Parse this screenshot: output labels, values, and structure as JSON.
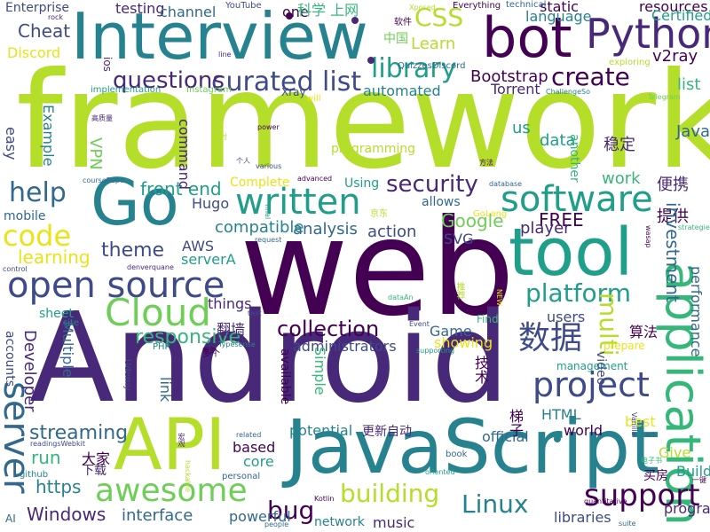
{
  "palette": {
    "dark_purple": "#440154",
    "purple": "#482878",
    "indigo": "#3e4a89",
    "blue": "#31688e",
    "teal_blue": "#26828e",
    "teal": "#1f9e89",
    "green": "#35b779",
    "light_green": "#6ece58",
    "lime": "#b5de2b",
    "yellow": "#e8e419"
  },
  "words": [
    {
      "text": "framework",
      "color": "#b5de2b"
    },
    {
      "text": "web",
      "color": "#440154"
    },
    {
      "text": "Android",
      "color": "#482878"
    },
    {
      "text": "JavaScript",
      "color": "#26828e"
    },
    {
      "text": "Interview",
      "color": "#26828e"
    },
    {
      "text": "bot",
      "color": "#440154"
    },
    {
      "text": "Go",
      "color": "#26828e"
    },
    {
      "text": "tool",
      "color": "#1f9e89"
    },
    {
      "text": "API",
      "color": "#b5de2b"
    },
    {
      "text": "application",
      "color": "#35b779"
    },
    {
      "text": "Python",
      "color": "#482878"
    },
    {
      "text": "open source",
      "color": "#3e4a89"
    },
    {
      "text": "Cloud",
      "color": "#6ece58"
    },
    {
      "text": "software",
      "color": "#1f9e89"
    },
    {
      "text": "written",
      "color": "#1f9e89"
    },
    {
      "text": "project",
      "color": "#3e4a89"
    },
    {
      "text": "数据",
      "color": "#3e4a89"
    },
    {
      "text": "awesome",
      "color": "#6ece58"
    },
    {
      "text": "server",
      "color": "#31688e"
    },
    {
      "text": "support",
      "color": "#440154"
    },
    {
      "text": "code",
      "color": "#e8e419"
    },
    {
      "text": "curated list",
      "color": "#3e4a89"
    },
    {
      "text": "library",
      "color": "#1f9e89"
    },
    {
      "text": "questions",
      "color": "#482878"
    },
    {
      "text": "help",
      "color": "#31688e"
    },
    {
      "text": "security",
      "color": "#482878"
    },
    {
      "text": "platform",
      "color": "#1f9e89"
    },
    {
      "text": "building",
      "color": "#b5de2b"
    },
    {
      "text": "Linux",
      "color": "#26828e"
    },
    {
      "text": "CSS",
      "color": "#b5de2b"
    },
    {
      "text": "create",
      "color": "#440154"
    },
    {
      "text": "collection",
      "color": "#440154"
    },
    {
      "text": "theme",
      "color": "#3e4a89"
    },
    {
      "text": "responsive",
      "color": "#35b779"
    },
    {
      "text": "front end",
      "color": "#1f9e89"
    },
    {
      "text": "Google",
      "color": "#6ece58"
    },
    {
      "text": "FREE",
      "color": "#440154"
    },
    {
      "text": "bug",
      "color": "#440154"
    },
    {
      "text": "Windows",
      "color": "#482878"
    },
    {
      "text": "interface",
      "color": "#31688e"
    },
    {
      "text": "streaming",
      "color": "#31688e"
    },
    {
      "text": "run",
      "color": "#35b779"
    },
    {
      "text": "https",
      "color": "#26828e"
    },
    {
      "text": "Cheat",
      "color": "#3e4a89"
    },
    {
      "text": "Learn",
      "color": "#b5de2b"
    },
    {
      "text": "Bootstrap",
      "color": "#440154"
    },
    {
      "text": "Torrent",
      "color": "#482878"
    },
    {
      "text": "v2ray",
      "color": "#440154"
    },
    {
      "text": "list",
      "color": "#35b779"
    },
    {
      "text": "Java",
      "color": "#31688e"
    },
    {
      "text": "稳定",
      "color": "#482878"
    },
    {
      "text": "便携",
      "color": "#482878"
    },
    {
      "text": "提供",
      "color": "#440154"
    },
    {
      "text": "investment",
      "color": "#31688e"
    },
    {
      "text": "data",
      "color": "#1f9e89"
    },
    {
      "text": "us",
      "color": "#1f9e89"
    },
    {
      "text": "work",
      "color": "#35b779"
    },
    {
      "text": "analysis",
      "color": "#31688e"
    },
    {
      "text": "compatible",
      "color": "#26828e"
    },
    {
      "text": "action",
      "color": "#3e4a89"
    },
    {
      "text": "player",
      "color": "#482878"
    },
    {
      "text": "SVG",
      "color": "#3e4a89"
    },
    {
      "text": "AWS",
      "color": "#3e4a89"
    },
    {
      "text": "serverA",
      "color": "#1f9e89"
    },
    {
      "text": "Hugo",
      "color": "#3e4a89"
    },
    {
      "text": "learning",
      "color": "#e8e419"
    },
    {
      "text": "mobile",
      "color": "#31688e"
    },
    {
      "text": "things",
      "color": "#482878"
    },
    {
      "text": "翻墙",
      "color": "#482878"
    },
    {
      "text": "administrators",
      "color": "#3e4a89"
    },
    {
      "text": "Game",
      "color": "#31688e"
    },
    {
      "text": "showing",
      "color": "#e8e419"
    },
    {
      "text": "users",
      "color": "#3e4a89"
    },
    {
      "text": "算法",
      "color": "#440154"
    },
    {
      "text": "performance",
      "color": "#31688e"
    },
    {
      "text": "multi",
      "color": "#b5de2b"
    },
    {
      "text": "Developer",
      "color": "#482878"
    },
    {
      "text": "Multiple",
      "color": "#31688e"
    },
    {
      "text": "sheet",
      "color": "#1f9e89"
    },
    {
      "text": "accounts",
      "color": "#3e4a89"
    },
    {
      "text": "Simple",
      "color": "#35b779"
    },
    {
      "text": "available",
      "color": "#440154"
    },
    {
      "text": "link",
      "color": "#31688e"
    },
    {
      "text": "potential",
      "color": "#26828e"
    },
    {
      "text": "更新自动",
      "color": "#482878"
    },
    {
      "text": "official",
      "color": "#31688e"
    },
    {
      "text": "world",
      "color": "#440154"
    },
    {
      "text": "HTML",
      "color": "#26828e"
    },
    {
      "text": "best",
      "color": "#e8e419"
    },
    {
      "text": "Give",
      "color": "#b5de2b"
    },
    {
      "text": "Build",
      "color": "#1f9e89"
    },
    {
      "text": "买房",
      "color": "#440154"
    },
    {
      "text": "programs",
      "color": "#482878"
    },
    {
      "text": "libraries",
      "color": "#3e4a89"
    },
    {
      "text": "music",
      "color": "#482878"
    },
    {
      "text": "network",
      "color": "#26828e"
    },
    {
      "text": "powerful",
      "color": "#31688e"
    },
    {
      "text": "core",
      "color": "#1f9e89"
    },
    {
      "text": "based",
      "color": "#440154"
    },
    {
      "text": "大家",
      "color": "#440154"
    },
    {
      "text": "下载",
      "color": "#482878"
    },
    {
      "text": "Enterprise",
      "color": "#3e4a89"
    },
    {
      "text": "testing",
      "color": "#482878"
    },
    {
      "text": "channel",
      "color": "#31688e"
    },
    {
      "text": "one",
      "color": "#440154"
    },
    {
      "text": "科学 上网",
      "color": "#35b779"
    },
    {
      "text": "static",
      "color": "#440154"
    },
    {
      "text": "resources",
      "color": "#440154"
    },
    {
      "text": "Certified",
      "color": "#1f9e89"
    },
    {
      "text": "language",
      "color": "#26828e"
    },
    {
      "text": "Discord",
      "color": "#e8e419"
    },
    {
      "text": "中国",
      "color": "#6ece58"
    },
    {
      "text": "automated",
      "color": "#26828e"
    },
    {
      "text": "implementation",
      "color": "#1f9e89"
    },
    {
      "text": "Instagram",
      "color": "#6ece58"
    },
    {
      "text": "VPN",
      "color": "#6ece58"
    },
    {
      "text": "easy",
      "color": "#3e4a89"
    },
    {
      "text": "Example",
      "color": "#26828e"
    },
    {
      "text": "command",
      "color": "#482878"
    },
    {
      "text": "Using",
      "color": "#1f9e89"
    },
    {
      "text": "Complete",
      "color": "#e8e419"
    },
    {
      "text": "allows",
      "color": "#31688e"
    },
    {
      "text": "programming",
      "color": "#b5de2b"
    },
    {
      "text": "Everything",
      "color": "#440154"
    },
    {
      "text": "technical",
      "color": "#31688e"
    },
    {
      "text": "exploring",
      "color": "#b5de2b"
    },
    {
      "text": "another",
      "color": "#35b779"
    },
    {
      "text": "技术",
      "color": "#440154"
    },
    {
      "text": "梯子",
      "color": "#440154"
    },
    {
      "text": "Find",
      "color": "#35b779"
    },
    {
      "text": "book",
      "color": "#31688e"
    },
    {
      "text": "management",
      "color": "#1f9e89"
    },
    {
      "text": "prepare",
      "color": "#e8e419"
    },
    {
      "text": "video",
      "color": "#3e4a89"
    },
    {
      "text": "PHP",
      "color": "#26828e"
    },
    {
      "text": "Udemy",
      "color": "#3e4a89"
    },
    {
      "text": "AI",
      "color": "#31688e"
    },
    {
      "text": "github",
      "color": "#26828e"
    },
    {
      "text": "people",
      "color": "#31688e"
    },
    {
      "text": "suite",
      "color": "#31688e"
    },
    {
      "text": "quantitative",
      "color": "#440154"
    },
    {
      "text": "personal",
      "color": "#31688e"
    },
    {
      "text": "related",
      "color": "#31688e"
    },
    {
      "text": "YouTube",
      "color": "#3e4a89"
    },
    {
      "text": "软件",
      "color": "#440154"
    },
    {
      "text": "rock",
      "color": "#482878"
    },
    {
      "text": "ios",
      "color": "#482878"
    },
    {
      "text": "line",
      "color": "#482878"
    },
    {
      "text": "QuizzesDiscord",
      "color": "#31688e"
    },
    {
      "text": "ChallengeSo",
      "color": "#26828e"
    },
    {
      "text": "Telegram",
      "color": "#6ece58"
    },
    {
      "text": "Xray",
      "color": "#3e4a89"
    },
    {
      "text": "will",
      "color": "#e8e419"
    },
    {
      "text": "power",
      "color": "#440154"
    },
    {
      "text": "various",
      "color": "#3e4a89"
    },
    {
      "text": "advanced",
      "color": "#440154"
    },
    {
      "text": "database",
      "color": "#31688e"
    },
    {
      "text": "GoLang",
      "color": "#e8e419"
    },
    {
      "text": "request",
      "color": "#31688e"
    },
    {
      "text": "control",
      "color": "#3e4a89"
    },
    {
      "text": "denverquane",
      "color": "#482878"
    },
    {
      "text": "Typesense",
      "color": "#26828e"
    },
    {
      "text": "supporting",
      "color": "#1f9e89"
    },
    {
      "text": "readingsWebkit",
      "color": "#3e4a89"
    },
    {
      "text": "Kotlin",
      "color": "#440154"
    },
    {
      "text": "courseRepo",
      "color": "#31688e"
    },
    {
      "text": "text",
      "color": "#3e4a89"
    },
    {
      "text": "site",
      "color": "#26828e"
    },
    {
      "text": "Xposed",
      "color": "#b5de2b"
    },
    {
      "text": "dataAn",
      "color": "#35b779"
    },
    {
      "text": "Event",
      "color": "#3e4a89"
    },
    {
      "text": "方法",
      "color": "#440154"
    },
    {
      "text": "个人",
      "color": "#3e4a89"
    },
    {
      "text": "定时",
      "color": "#b5de2b"
    },
    {
      "text": "高质量",
      "color": "#482878"
    },
    {
      "text": "京东",
      "color": "#b5de2b"
    },
    {
      "text": "多个",
      "color": "#440154"
    },
    {
      "text": "推荐",
      "color": "#b5de2b"
    },
    {
      "text": "帮助",
      "color": "#440154"
    },
    {
      "text": "宏观",
      "color": "#482878"
    },
    {
      "text": "电子书",
      "color": "#35b779"
    },
    {
      "text": "一键",
      "color": "#440154"
    },
    {
      "text": "wasap",
      "color": "#440154"
    },
    {
      "text": "strategies",
      "color": "#35b779"
    },
    {
      "text": "art",
      "color": "#31688e"
    },
    {
      "text": "Vanilla",
      "color": "#3e4a89"
    },
    {
      "text": "oriented",
      "color": "#1f9e89"
    },
    {
      "text": "hackable",
      "color": "#b5de2b"
    },
    {
      "text": "NEW",
      "color": "#e8e419"
    },
    {
      "text": "final",
      "color": "#1f9e89"
    }
  ],
  "dots": [
    {
      "color": "#440154"
    },
    {
      "color": "#26828e"
    },
    {
      "color": "#482878"
    },
    {
      "color": "#482878"
    }
  ]
}
